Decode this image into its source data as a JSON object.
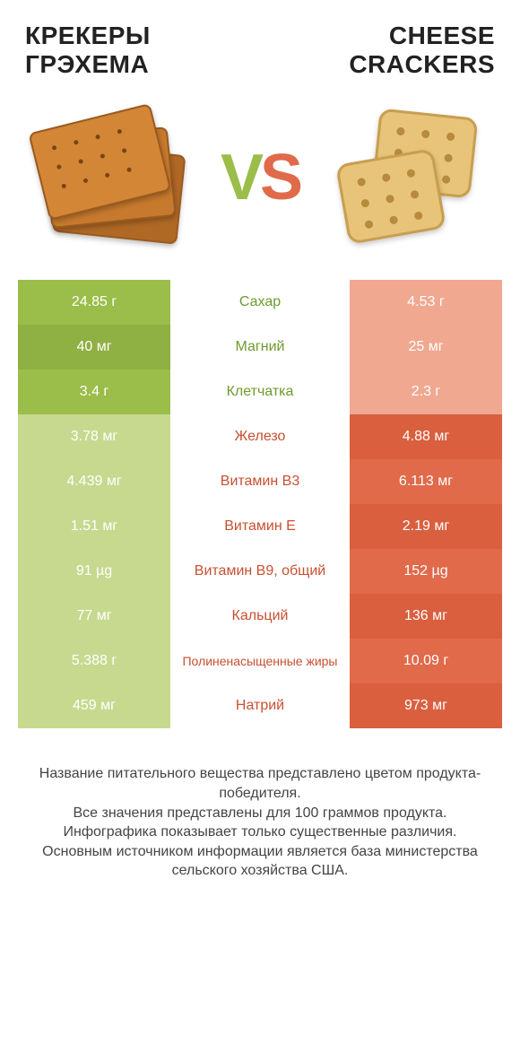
{
  "titles": {
    "left_line1": "КРЕКЕРЫ",
    "left_line2": "ГРЭХЕМА",
    "right_line1": "CHEESE",
    "right_line2": "CRACKERS"
  },
  "vs": {
    "v": "V",
    "s": "S"
  },
  "colors": {
    "green_base": "#9bbd4a",
    "green_alt": "#8fb042",
    "orange_base": "#e06a4a",
    "orange_alt": "#d95f3f",
    "label_green": "#6f9a2e",
    "label_orange": "#c94f31",
    "left_pale": "#c7d98f",
    "right_pale": "#f0a891"
  },
  "rows": [
    {
      "label": "Сахар",
      "left": "24.85 г",
      "right": "4.53 г",
      "winner": "left"
    },
    {
      "label": "Магний",
      "left": "40 мг",
      "right": "25 мг",
      "winner": "left"
    },
    {
      "label": "Клетчатка",
      "left": "3.4 г",
      "right": "2.3 г",
      "winner": "left"
    },
    {
      "label": "Железо",
      "left": "3.78 мг",
      "right": "4.88 мг",
      "winner": "right"
    },
    {
      "label": "Витамин B3",
      "left": "4.439 мг",
      "right": "6.113 мг",
      "winner": "right"
    },
    {
      "label": "Витамин E",
      "left": "1.51 мг",
      "right": "2.19 мг",
      "winner": "right"
    },
    {
      "label": "Витамин B9, общий",
      "left": "91 µg",
      "right": "152 µg",
      "winner": "right"
    },
    {
      "label": "Кальций",
      "left": "77 мг",
      "right": "136 мг",
      "winner": "right"
    },
    {
      "label": "Полиненасыщенные жиры",
      "left": "5.388 г",
      "right": "10.09 г",
      "winner": "right",
      "small": true
    },
    {
      "label": "Натрий",
      "left": "459 мг",
      "right": "973 мг",
      "winner": "right"
    }
  ],
  "footer": {
    "l1": "Название питательного вещества представлено цветом продукта-победителя.",
    "l2": "Все значения представлены для 100 граммов продукта.",
    "l3": "Инфографика показывает только существенные различия.",
    "l4": "Основным источником информации является база министерства сельского хозяйства США."
  }
}
